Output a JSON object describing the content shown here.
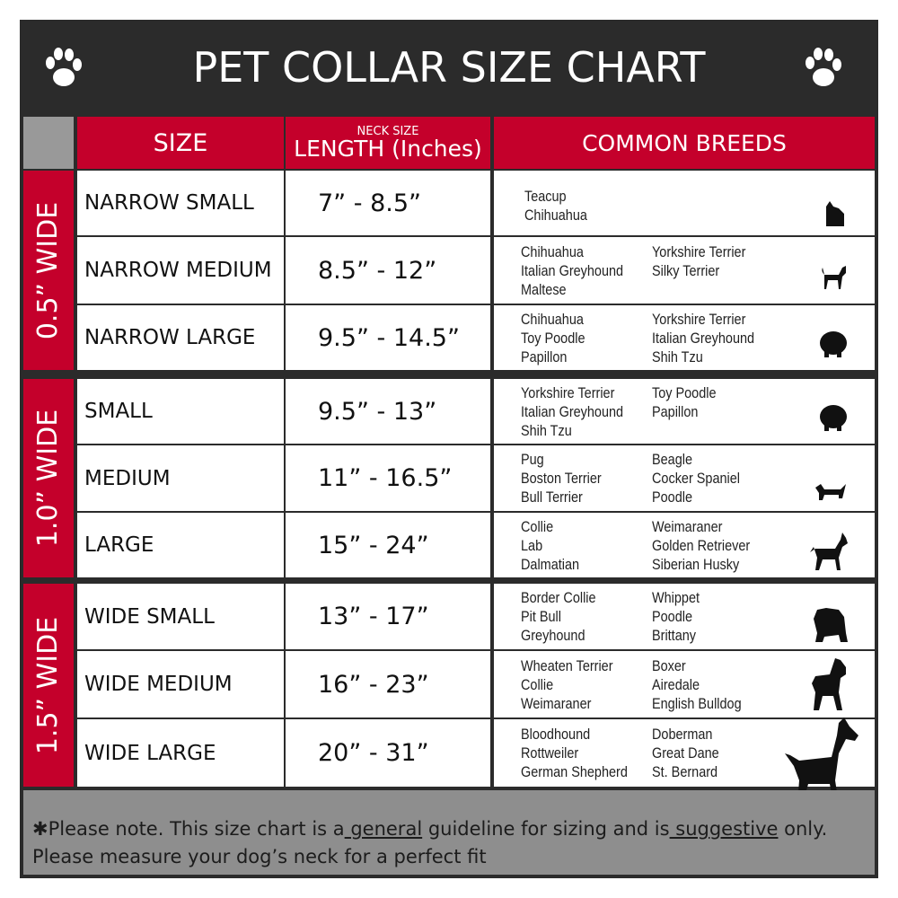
{
  "title": "PET COLLAR SIZE CHART",
  "headers": {
    "size": "SIZE",
    "length_small": "NECK SIZE",
    "length": "LENGTH (Inches)",
    "breeds": "COMMON BREEDS"
  },
  "colors": {
    "accent": "#c4002b",
    "frame": "#2b2b2b",
    "footer": "#8e8e8e"
  },
  "groups": [
    {
      "label": "0.5” WIDE",
      "rows": [
        {
          "size": "NARROW SMALL",
          "length": "7” - 8.5”",
          "breeds1": [
            "Teacup",
            "Chihuahua"
          ],
          "breeds2": [],
          "icon": "yorkie-silhouette-icon"
        },
        {
          "size": "NARROW MEDIUM",
          "length": "8.5” - 12”",
          "breeds1": [
            "Chihuahua",
            "Italian Greyhound",
            "Maltese"
          ],
          "breeds2": [
            "Yorkshire Terrier",
            "Silky Terrier"
          ],
          "icon": "chihuahua-silhouette-icon"
        },
        {
          "size": "NARROW LARGE",
          "length": "9.5” - 14.5”",
          "breeds1": [
            "Chihuahua",
            "Toy Poodle",
            "Papillon"
          ],
          "breeds2": [
            "Yorkshire Terrier",
            "Italian Greyhound",
            "Shih Tzu"
          ],
          "icon": "pomeranian-silhouette-icon"
        }
      ]
    },
    {
      "label": "1.0” WIDE",
      "rows": [
        {
          "size": "SMALL",
          "length": "9.5” - 13”",
          "breeds1": [
            "Yorkshire Terrier",
            "Italian Greyhound",
            "Shih Tzu"
          ],
          "breeds2": [
            "Toy Poodle",
            "Papillon"
          ],
          "icon": "pomeranian-silhouette-icon"
        },
        {
          "size": "MEDIUM",
          "length": "11” - 16.5”",
          "breeds1": [
            "Pug",
            "Boston Terrier",
            "Bull Terrier"
          ],
          "breeds2": [
            "Beagle",
            "Cocker Spaniel",
            "Poodle"
          ],
          "icon": "dachshund-silhouette-icon"
        },
        {
          "size": "LARGE",
          "length": "15” - 24”",
          "breeds1": [
            "Collie",
            "Lab",
            "Dalmatian"
          ],
          "breeds2": [
            "Weimaraner",
            "Golden Retriever",
            "Siberian Husky"
          ],
          "icon": "shepherd-silhouette-icon"
        }
      ]
    },
    {
      "label": "1.5” WIDE",
      "rows": [
        {
          "size": "WIDE SMALL",
          "length": "13” - 17”",
          "breeds1": [
            "Border Collie",
            "Pit Bull",
            "Greyhound"
          ],
          "breeds2": [
            "Whippet",
            "Poodle",
            "Brittany"
          ],
          "icon": "bulldog-silhouette-icon"
        },
        {
          "size": "WIDE MEDIUM",
          "length": "16” - 23”",
          "breeds1": [
            "Wheaten Terrier",
            "Collie",
            "Weimaraner"
          ],
          "breeds2": [
            "Boxer",
            "Airedale",
            "English Bulldog"
          ],
          "icon": "pitbull-silhouette-icon"
        },
        {
          "size": "WIDE LARGE",
          "length": "20” - 31”",
          "breeds1": [
            "Bloodhound",
            "Rottweiler",
            "German Shepherd"
          ],
          "breeds2": [
            "Doberman",
            "Great Dane",
            "St. Bernard"
          ],
          "icon": "doberman-silhouette-icon"
        }
      ]
    }
  ],
  "footer": {
    "p1": "✱Please note. This size chart is a",
    "u1": " general",
    "p2": " guideline for sizing and is",
    "u2": " suggestive",
    "p3": " only.",
    "line2": "Please measure your dog’s neck for a perfect fit"
  }
}
